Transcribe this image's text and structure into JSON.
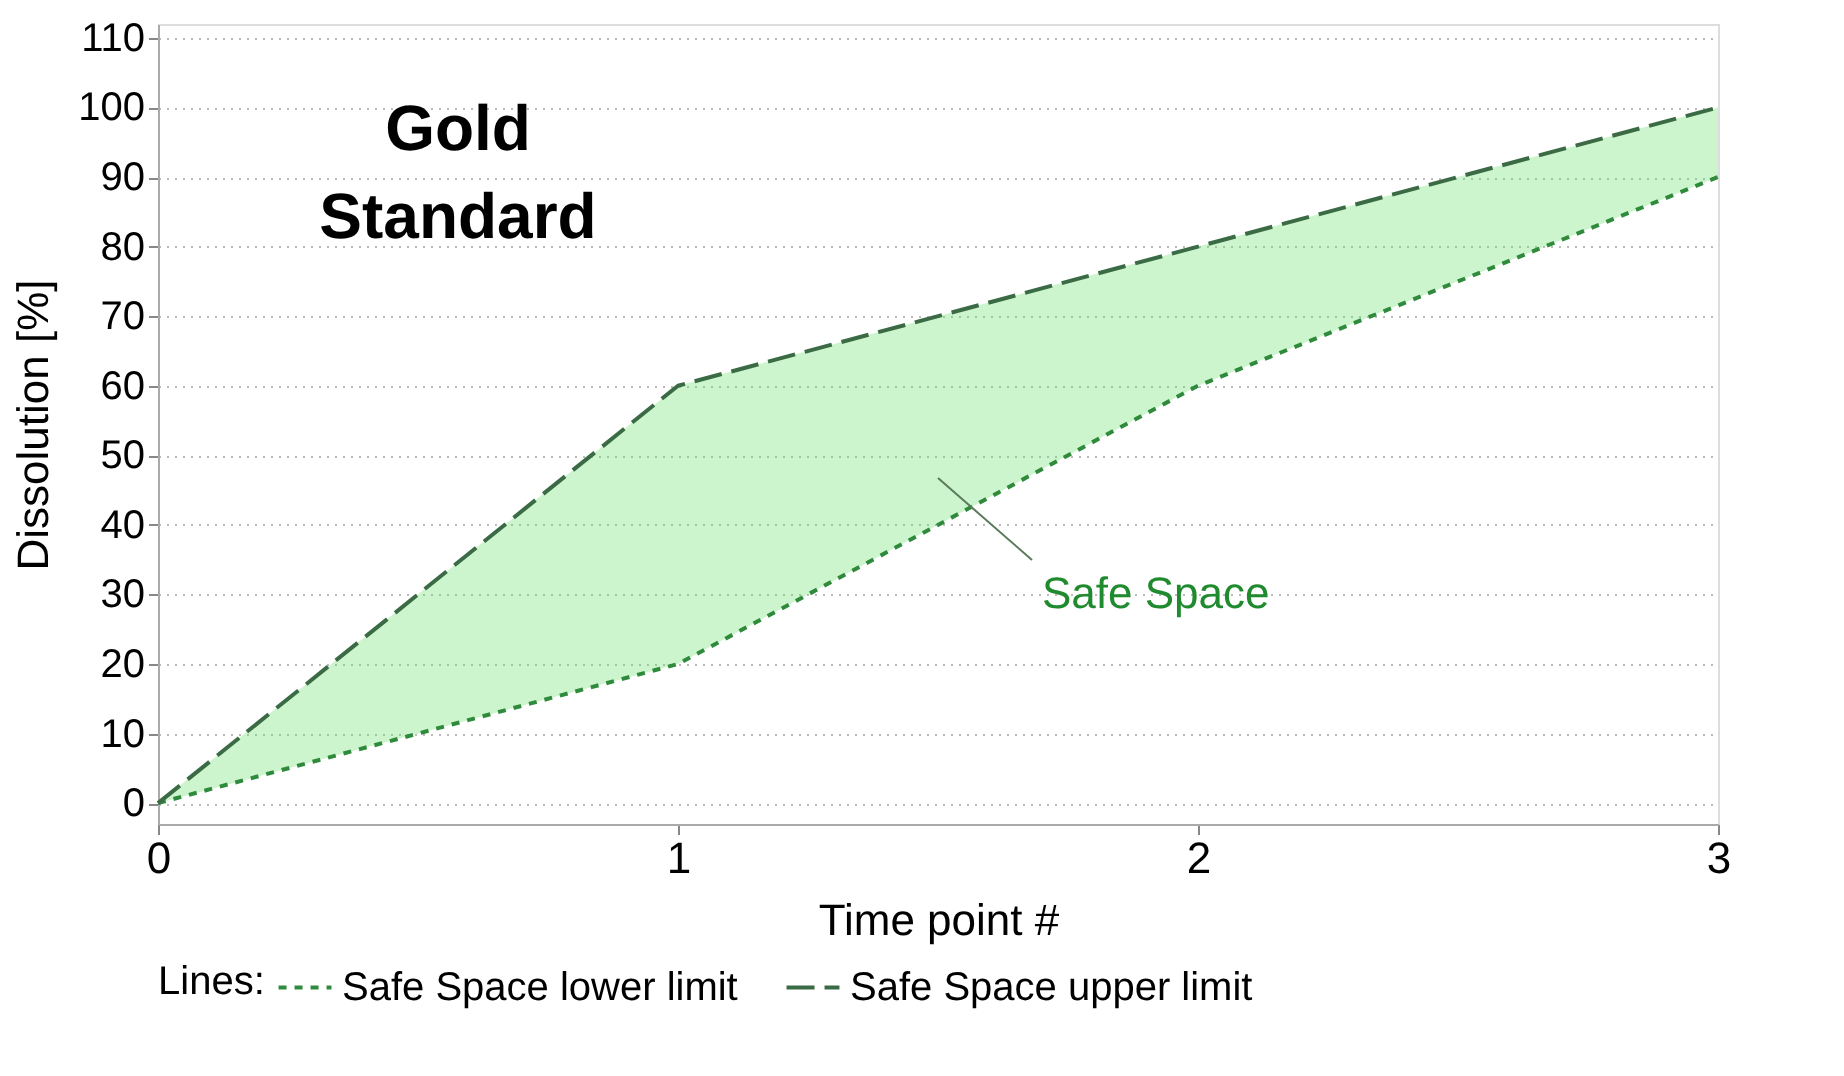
{
  "chart_data": {
    "type": "line",
    "xlabel": "Time point #",
    "ylabel": "Dissolution [%]",
    "legend_title": "Lines:",
    "x": [
      0,
      1,
      2,
      3
    ],
    "series": [
      {
        "name": "Safe Space lower limit",
        "color": "#2f8a3c",
        "values": [
          0,
          20,
          60,
          90
        ],
        "line_style": "dashed"
      },
      {
        "name": "Safe Space upper limit",
        "color": "#3b6b45",
        "values": [
          0,
          60,
          80,
          100
        ],
        "line_style": "longdash",
        "lower": [
          0,
          20,
          60,
          90
        ],
        "upper": [
          0,
          60,
          80,
          100
        ]
      }
    ],
    "xlim": [
      0,
      3
    ],
    "xticks": [
      0,
      1,
      2,
      3
    ],
    "ylim": [
      -3,
      112
    ],
    "yticks": [
      0,
      10,
      20,
      30,
      40,
      50,
      60,
      70,
      80,
      90,
      100,
      110
    ],
    "grid": "y",
    "legend": "bottom",
    "marker": "none",
    "annotations": [
      "Gold Standard",
      "Safe Space"
    ]
  }
}
